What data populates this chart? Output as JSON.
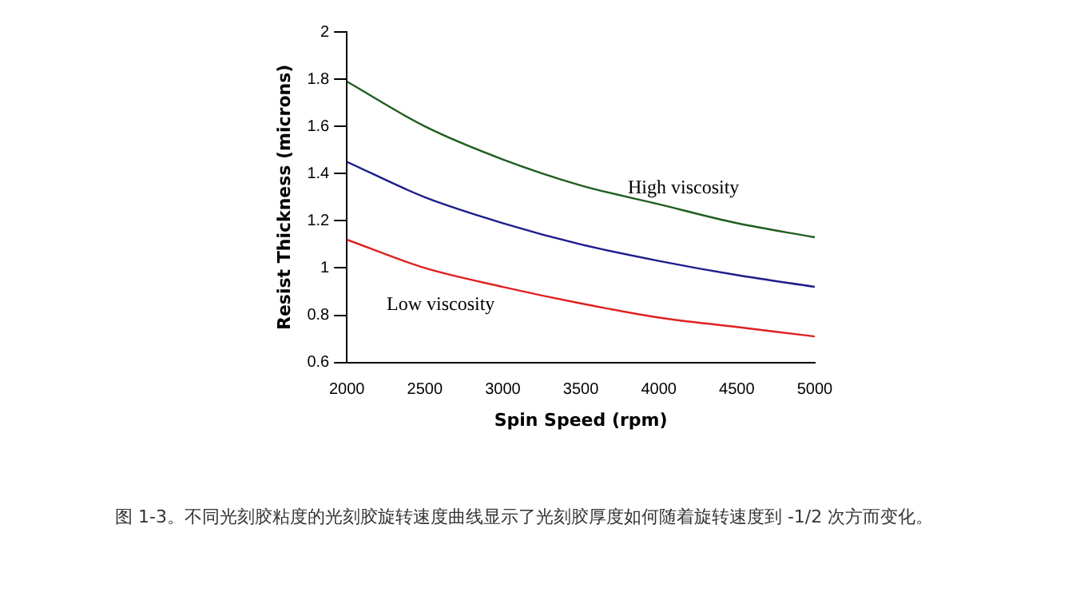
{
  "chart_data": {
    "type": "line",
    "xlabel": "Spin Speed (rpm)",
    "ylabel": "Resist Thickness (microns)",
    "x": [
      2000,
      2500,
      3000,
      3500,
      4000,
      4500,
      5000
    ],
    "series": [
      {
        "color": "#1e5e1e",
        "values": [
          1.79,
          1.6,
          1.46,
          1.35,
          1.27,
          1.19,
          1.13
        ]
      },
      {
        "color": "#1c1c8c",
        "values": [
          1.45,
          1.3,
          1.19,
          1.1,
          1.03,
          0.97,
          0.92
        ]
      },
      {
        "color": "#e02020",
        "values": [
          1.12,
          1.0,
          0.92,
          0.85,
          0.79,
          0.75,
          0.71
        ]
      }
    ],
    "xlim": [
      2000,
      5000
    ],
    "xticks": [
      2000,
      2500,
      3000,
      3500,
      4000,
      4500,
      5000
    ],
    "ylim": [
      0.6,
      2
    ],
    "yticks": [
      0.6,
      0.8,
      1,
      1.2,
      1.4,
      1.6,
      1.8,
      2
    ],
    "grid": false,
    "legend": false,
    "marker": "none",
    "line_style": "solid",
    "annotations": [
      "High viscosity",
      "Low viscosity",
      "图 1-3。不同光刻胶粘度的光刻胶旋转速度曲线显示了光刻胶厚度如何随着旋转速度到 -1/2 次方而变化。"
    ]
  }
}
